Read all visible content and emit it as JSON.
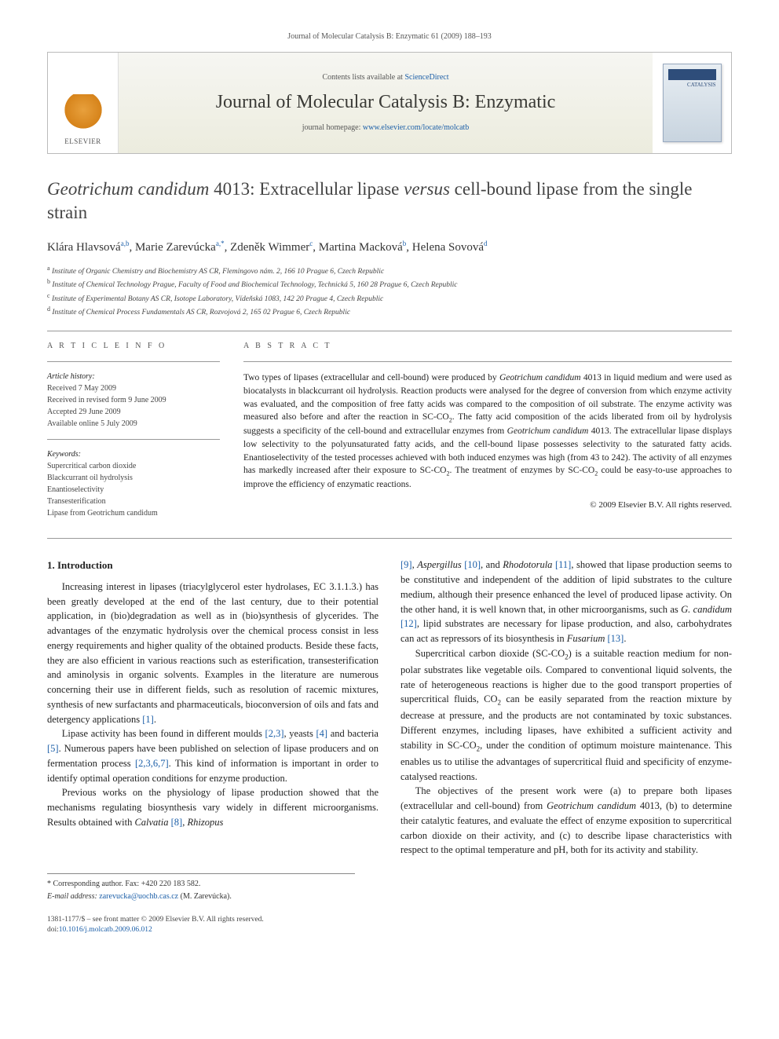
{
  "running_head": "Journal of Molecular Catalysis B: Enzymatic 61 (2009) 188–193",
  "masthead": {
    "contents_prefix": "Contents lists available at ",
    "contents_link": "ScienceDirect",
    "journal_name": "Journal of Molecular Catalysis B: Enzymatic",
    "homepage_prefix": "journal homepage: ",
    "homepage_url": "www.elsevier.com/locate/molcatb",
    "publisher": "ELSEVIER",
    "cover_label": "CATALYSIS"
  },
  "title": {
    "part1_ital": "Geotrichum candidum",
    "part2": " 4013: Extracellular lipase ",
    "part3_ital": "versus",
    "part4": " cell-bound lipase from the single strain"
  },
  "authors_html": "Klára Hlavsová<sup>a,b</sup>, Marie Zarevúcka<sup>a,*</sup>, Zdeněk Wimmer<sup>c</sup>, Martina Macková<sup>b</sup>, Helena Sovová<sup>d</sup>",
  "affiliations": [
    {
      "sup": "a",
      "text": "Institute of Organic Chemistry and Biochemistry AS CR, Flemingovo nám. 2, 166 10 Prague 6, Czech Republic"
    },
    {
      "sup": "b",
      "text": "Institute of Chemical Technology Prague, Faculty of Food and Biochemical Technology, Technická 5, 160 28 Prague 6, Czech Republic"
    },
    {
      "sup": "c",
      "text": "Institute of Experimental Botany AS CR, Isotope Laboratory, Vídeňská 1083, 142 20 Prague 4, Czech Republic"
    },
    {
      "sup": "d",
      "text": "Institute of Chemical Process Fundamentals AS CR, Rozvojová 2, 165 02 Prague 6, Czech Republic"
    }
  ],
  "article_info": {
    "heading": "A R T I C L E   I N F O",
    "history_label": "Article history:",
    "history": [
      "Received 7 May 2009",
      "Received in revised form 9 June 2009",
      "Accepted 29 June 2009",
      "Available online 5 July 2009"
    ],
    "keywords_label": "Keywords:",
    "keywords": [
      "Supercritical carbon dioxide",
      "Blackcurrant oil hydrolysis",
      "Enantioselectivity",
      "Transesterification",
      "Lipase from Geotrichum candidum"
    ]
  },
  "abstract": {
    "heading": "A B S T R A C T",
    "text": "Two types of lipases (extracellular and cell-bound) were produced by Geotrichum candidum 4013 in liquid medium and were used as biocatalysts in blackcurrant oil hydrolysis. Reaction products were analysed for the degree of conversion from which enzyme activity was evaluated, and the composition of free fatty acids was compared to the composition of oil substrate. The enzyme activity was measured also before and after the reaction in SC-CO₂. The fatty acid composition of the acids liberated from oil by hydrolysis suggests a specificity of the cell-bound and extracellular enzymes from Geotrichum candidum 4013. The extracellular lipase displays low selectivity to the polyunsaturated fatty acids, and the cell-bound lipase possesses selectivity to the saturated fatty acids. Enantioselectivity of the tested processes achieved with both induced enzymes was high (from 43 to 242). The activity of all enzymes has markedly increased after their exposure to SC-CO₂. The treatment of enzymes by SC-CO₂ could be easy-to-use approaches to improve the efficiency of enzymatic reactions.",
    "copyright": "© 2009 Elsevier B.V. All rights reserved."
  },
  "sections": {
    "intro_head": "1. Introduction",
    "p1": "Increasing interest in lipases (triacylglycerol ester hydrolases, EC 3.1.1.3.) has been greatly developed at the end of the last century, due to their potential application, in (bio)degradation as well as in (bio)synthesis of glycerides. The advantages of the enzymatic hydrolysis over the chemical process consist in less energy requirements and higher quality of the obtained products. Beside these facts, they are also efficient in various reactions such as esterification, transesterification and aminolysis in organic solvents. Examples in the literature are numerous concerning their use in different fields, such as resolution of racemic mixtures, synthesis of new surfactants and pharmaceuticals, bioconversion of oils and fats and detergency applications [1].",
    "p2": "Lipase activity has been found in different moulds [2,3], yeasts [4] and bacteria [5]. Numerous papers have been published on selection of lipase producers and on fermentation process [2,3,6,7]. This kind of information is important in order to identify optimal operation conditions for enzyme production.",
    "p3": "Previous works on the physiology of lipase production showed that the mechanisms regulating biosynthesis vary widely in different microorganisms. Results obtained with Calvatia [8], Rhizopus",
    "p4": "[9], Aspergillus [10], and Rhodotorula [11], showed that lipase production seems to be constitutive and independent of the addition of lipid substrates to the culture medium, although their presence enhanced the level of produced lipase activity. On the other hand, it is well known that, in other microorganisms, such as G. candidum [12], lipid substrates are necessary for lipase production, and also, carbohydrates can act as repressors of its biosynthesis in Fusarium [13].",
    "p5": "Supercritical carbon dioxide (SC-CO₂) is a suitable reaction medium for non-polar substrates like vegetable oils. Compared to conventional liquid solvents, the rate of heterogeneous reactions is higher due to the good transport properties of supercritical fluids, CO₂ can be easily separated from the reaction mixture by decrease at pressure, and the products are not contaminated by toxic substances. Different enzymes, including lipases, have exhibited a sufficient activity and stability in SC-CO₂, under the condition of optimum moisture maintenance. This enables us to utilise the advantages of supercritical fluid and specificity of enzyme-catalysed reactions.",
    "p6": "The objectives of the present work were (a) to prepare both lipases (extracellular and cell-bound) from Geotrichum candidum 4013, (b) to determine their catalytic features, and evaluate the effect of enzyme exposition to supercritical carbon dioxide on their activity, and (c) to describe lipase characteristics with respect to the optimal temperature and pH, both for its activity and stability."
  },
  "footnotes": {
    "corr": "* Corresponding author. Fax: +420 220 183 582.",
    "email_label": "E-mail address: ",
    "email": "zarevucka@uochb.cas.cz",
    "email_tail": " (M. Zarevúcka)."
  },
  "footer": {
    "line1": "1381-1177/$ – see front matter © 2009 Elsevier B.V. All rights reserved.",
    "doi_label": "doi:",
    "doi": "10.1016/j.molcatb.2009.06.012"
  },
  "colors": {
    "link": "#1c5fa8",
    "text": "#222222",
    "rule": "#999999"
  }
}
